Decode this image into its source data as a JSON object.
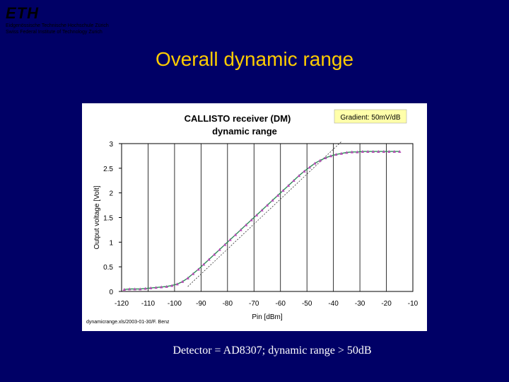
{
  "slide": {
    "logo": "ETH",
    "org_line1": "Eidgenössische Technische Hochschule Zürich",
    "org_line2": "Swiss Federal Institute of Technology Zurich",
    "title": "Overall dynamic range",
    "caption": "Detector = AD8307; dynamic range > 50dB"
  },
  "colors": {
    "background": "#000066",
    "title": "#FFCC00",
    "series": "#B44CB4",
    "fit": "#2E8B57",
    "tangent": "#333333",
    "annotation_bg": "#FFFFAA"
  },
  "chart_data": {
    "type": "scatter",
    "title_line1": "CALLISTO receiver (DM)",
    "title_line2": "dynamic range",
    "xlabel": "Pin [dBm]",
    "ylabel": "Output voltage [Volt]",
    "xlim": [
      -120,
      -10
    ],
    "ylim": [
      0,
      3
    ],
    "xticks": [
      -120,
      -110,
      -100,
      -90,
      -80,
      -70,
      -60,
      -50,
      -40,
      -30,
      -20,
      -10
    ],
    "xtick_labels": [
      "-120",
      "-110",
      "-100",
      "-90",
      "-80",
      "-70",
      "-60",
      "-50",
      "-40",
      "-30",
      "-20",
      "-10"
    ],
    "yticks": [
      0,
      0.5,
      1,
      1.5,
      2,
      2.5,
      3
    ],
    "ytick_labels": [
      "0",
      "0.5",
      "1",
      "1.5",
      "2",
      "2.5",
      "3"
    ],
    "grid": "vertical",
    "annotation": "Gradient: 50mV/dB",
    "footer": "dynamicrange.xls/2003-01-30/F. Benz",
    "series": [
      {
        "x": [
          -119,
          -117,
          -115,
          -113,
          -111,
          -109,
          -107,
          -105,
          -103,
          -101,
          -99,
          -97,
          -95,
          -93,
          -91,
          -89,
          -87,
          -85,
          -83,
          -81,
          -79,
          -77,
          -75,
          -73,
          -71,
          -69,
          -67,
          -65,
          -63,
          -61,
          -59,
          -57,
          -55,
          -53,
          -51,
          -49,
          -47,
          -45,
          -43,
          -41,
          -39,
          -37,
          -35,
          -33,
          -31,
          -29,
          -27,
          -25,
          -23,
          -21,
          -19,
          -17,
          -15
        ],
        "y": [
          0.04,
          0.05,
          0.05,
          0.05,
          0.06,
          0.07,
          0.08,
          0.09,
          0.1,
          0.12,
          0.15,
          0.2,
          0.27,
          0.36,
          0.45,
          0.55,
          0.65,
          0.75,
          0.85,
          0.95,
          1.05,
          1.15,
          1.25,
          1.35,
          1.45,
          1.55,
          1.65,
          1.75,
          1.85,
          1.95,
          2.05,
          2.15,
          2.25,
          2.35,
          2.44,
          2.52,
          2.6,
          2.66,
          2.71,
          2.75,
          2.78,
          2.8,
          2.82,
          2.83,
          2.83,
          2.84,
          2.84,
          2.84,
          2.84,
          2.84,
          2.84,
          2.84,
          2.84
        ]
      }
    ]
  }
}
